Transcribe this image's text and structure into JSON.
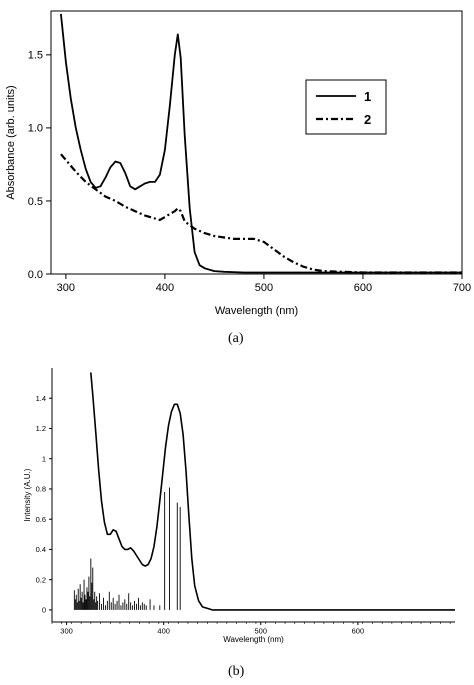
{
  "chart_data": [
    {
      "type": "line",
      "panel_label": "(a)",
      "xlabel": "Wavelength (nm)",
      "ylabel": "Absorbance (arb. units)",
      "xlim": [
        285,
        700
      ],
      "ylim": [
        0,
        1.8
      ],
      "xticks": [
        300,
        400,
        500,
        600,
        700
      ],
      "xtick_labels": [
        "300",
        "400",
        "500",
        "600",
        "700"
      ],
      "yticks": [
        0,
        0.5,
        1,
        1.5
      ],
      "ytick_labels": [
        "0.0",
        "0.5",
        "1.0",
        "1.5"
      ],
      "grid": false,
      "legend_position": "top-right",
      "series": [
        {
          "name": "1",
          "style": "solid",
          "x": [
            295,
            300,
            305,
            310,
            315,
            320,
            325,
            330,
            335,
            340,
            345,
            350,
            355,
            360,
            365,
            370,
            375,
            380,
            385,
            390,
            395,
            400,
            405,
            410,
            413,
            416,
            420,
            425,
            430,
            435,
            440,
            450,
            460,
            480,
            500,
            550,
            600,
            650,
            700
          ],
          "y": [
            1.78,
            1.45,
            1.2,
            1.0,
            0.85,
            0.72,
            0.63,
            0.59,
            0.6,
            0.66,
            0.73,
            0.77,
            0.76,
            0.69,
            0.6,
            0.58,
            0.6,
            0.62,
            0.63,
            0.63,
            0.68,
            0.85,
            1.15,
            1.5,
            1.64,
            1.48,
            0.95,
            0.45,
            0.15,
            0.06,
            0.04,
            0.02,
            0.015,
            0.01,
            0.01,
            0.01,
            0.01,
            0.01,
            0.01
          ]
        },
        {
          "name": "2",
          "style": "dash-dot",
          "x": [
            295,
            300,
            310,
            320,
            330,
            340,
            350,
            360,
            370,
            380,
            390,
            395,
            400,
            405,
            410,
            413,
            416,
            420,
            430,
            440,
            450,
            460,
            470,
            480,
            490,
            500,
            510,
            520,
            530,
            540,
            550,
            560,
            580,
            600,
            650,
            700
          ],
          "y": [
            0.82,
            0.78,
            0.7,
            0.63,
            0.58,
            0.53,
            0.5,
            0.46,
            0.43,
            0.4,
            0.38,
            0.37,
            0.39,
            0.41,
            0.43,
            0.45,
            0.43,
            0.36,
            0.31,
            0.28,
            0.26,
            0.25,
            0.24,
            0.24,
            0.24,
            0.22,
            0.17,
            0.12,
            0.08,
            0.05,
            0.03,
            0.02,
            0.015,
            0.01,
            0.01,
            0.01
          ]
        }
      ]
    },
    {
      "type": "line",
      "panel_label": "(b)",
      "xlabel": "Wavelength (nm)",
      "ylabel": "Intensity (A.U.)",
      "xlim": [
        285,
        700
      ],
      "ylim": [
        -0.08,
        1.6
      ],
      "xticks": [
        300,
        400,
        500,
        600
      ],
      "xtick_labels": [
        "300",
        "400",
        "500",
        "600"
      ],
      "yticks": [
        0,
        0.2,
        0.4,
        0.6,
        0.8,
        1,
        1.2,
        1.4
      ],
      "ytick_labels": [
        "0",
        "0.2",
        "0.4",
        "0.6",
        "0.8",
        "1",
        "1.2",
        "1.4"
      ],
      "grid": false,
      "series": [
        {
          "style": "solid",
          "x": [
            325,
            327,
            330,
            333,
            336,
            339,
            342,
            345,
            348,
            351,
            354,
            357,
            360,
            363,
            366,
            369,
            372,
            375,
            378,
            381,
            384,
            387,
            390,
            393,
            396,
            399,
            402,
            405,
            408,
            411,
            414,
            417,
            420,
            423,
            426,
            429,
            432,
            436,
            440,
            445,
            450,
            460,
            480,
            500,
            550,
            600,
            650,
            700
          ],
          "y": [
            1.57,
            1.42,
            1.18,
            0.93,
            0.72,
            0.58,
            0.5,
            0.5,
            0.53,
            0.52,
            0.47,
            0.42,
            0.4,
            0.4,
            0.41,
            0.39,
            0.36,
            0.33,
            0.3,
            0.29,
            0.3,
            0.34,
            0.42,
            0.55,
            0.72,
            0.9,
            1.08,
            1.22,
            1.31,
            1.36,
            1.36,
            1.3,
            1.16,
            0.92,
            0.62,
            0.34,
            0.16,
            0.06,
            0.02,
            0.01,
            0.0,
            0.0,
            0.0,
            0.0,
            0.0,
            0.0,
            0.0,
            0.0
          ]
        }
      ],
      "sticks": {
        "x": [
          308,
          309,
          310,
          311,
          312,
          313,
          314,
          315,
          316,
          317,
          318,
          319,
          320,
          321,
          322,
          323,
          324,
          325,
          326,
          327,
          328,
          329,
          330,
          331,
          332,
          334,
          336,
          338,
          340,
          342,
          344,
          346,
          348,
          350,
          352,
          354,
          356,
          358,
          360,
          362,
          364,
          366,
          368,
          370,
          372,
          374,
          376,
          378,
          380,
          382,
          386,
          390,
          396,
          401,
          406,
          414,
          417
        ],
        "y": [
          0.13,
          0.07,
          0.1,
          0.05,
          0.14,
          0.06,
          0.17,
          0.08,
          0.12,
          0.05,
          0.2,
          0.1,
          0.07,
          0.15,
          0.12,
          0.22,
          0.09,
          0.34,
          0.18,
          0.28,
          0.07,
          0.12,
          0.05,
          0.09,
          0.06,
          0.11,
          0.04,
          0.08,
          0.03,
          0.06,
          0.12,
          0.05,
          0.08,
          0.04,
          0.06,
          0.1,
          0.03,
          0.05,
          0.07,
          0.04,
          0.11,
          0.05,
          0.03,
          0.06,
          0.04,
          0.08,
          0.03,
          0.05,
          0.04,
          0.03,
          0.07,
          0.03,
          0.03,
          0.78,
          0.81,
          0.71,
          0.68
        ]
      }
    }
  ]
}
